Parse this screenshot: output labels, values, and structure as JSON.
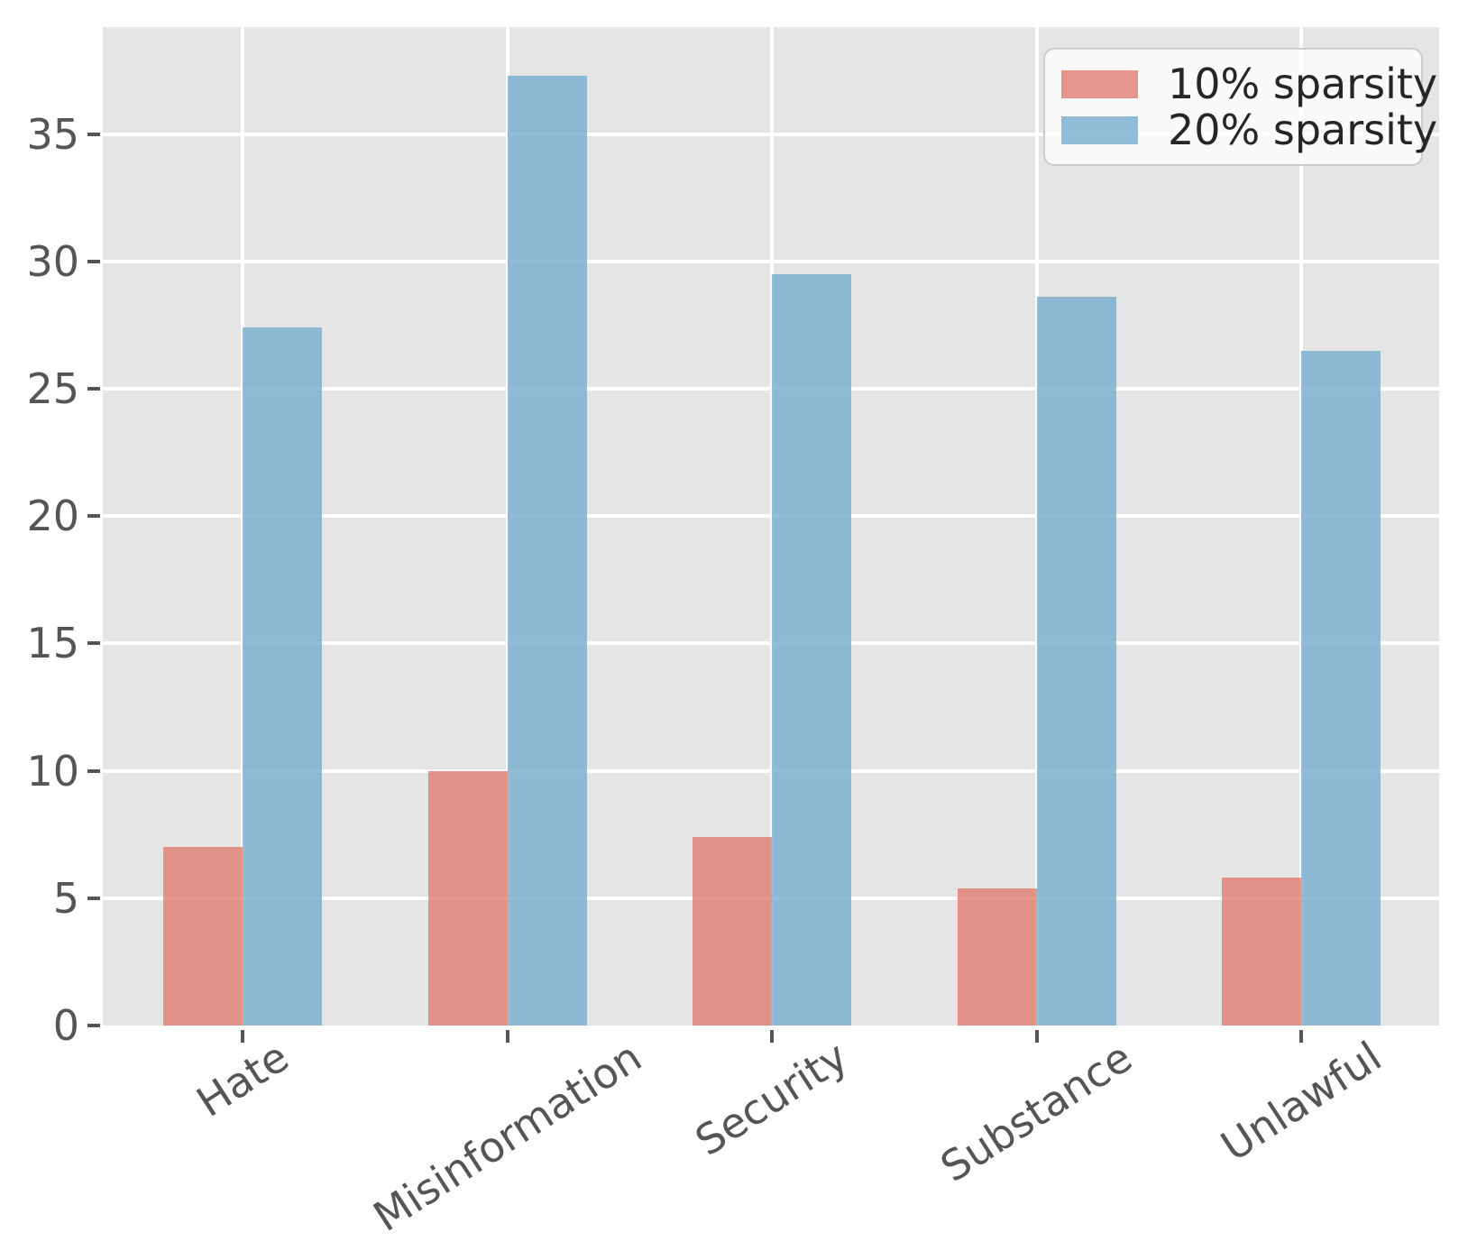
{
  "chart_data": {
    "type": "bar",
    "title": "",
    "xlabel": "",
    "ylabel": "",
    "categories": [
      "Hate",
      "Misinformation",
      "Security",
      "Substance",
      "Unlawful"
    ],
    "series": [
      {
        "name": "10% sparsity",
        "color": "rgba(225,124,114,0.8)",
        "values": [
          7.0,
          10.0,
          7.4,
          5.4,
          5.8
        ]
      },
      {
        "name": "20% sparsity",
        "color": "rgba(118,172,207,0.8)",
        "values": [
          27.4,
          37.3,
          29.5,
          28.6,
          26.5
        ]
      }
    ],
    "yticks": [
      0,
      5,
      10,
      15,
      20,
      25,
      30,
      35
    ],
    "ylim": [
      0,
      39.2
    ],
    "grid": true,
    "grid_color": "#ffffff",
    "plot_bg": "#e5e5e5",
    "tick_color": "#555555",
    "tick_label_color": "#555555",
    "legend_text_color": "#262626",
    "legend_position": "upper right",
    "x_label_rotation_deg": 33
  }
}
